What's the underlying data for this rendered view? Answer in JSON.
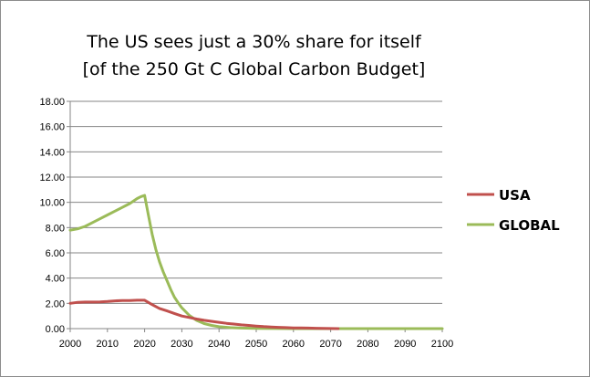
{
  "chart_data": {
    "type": "line",
    "title": [
      "The US sees just a 30% share for itself",
      "[of the 250 Gt C Global Carbon Budget]"
    ],
    "xlabel": "",
    "ylabel": "",
    "xlim": [
      2000,
      2100
    ],
    "ylim": [
      0,
      18
    ],
    "x_ticks": [
      "2000",
      "2010",
      "2020",
      "2030",
      "2040",
      "2050",
      "2060",
      "2070",
      "2080",
      "2090",
      "2100"
    ],
    "y_ticks": [
      "0.00",
      "2.00",
      "4.00",
      "6.00",
      "8.00",
      "10.00",
      "12.00",
      "14.00",
      "16.00",
      "18.00"
    ],
    "grid": "horizontal",
    "legend_position": "right",
    "series": [
      {
        "name": "USA",
        "color": "#c0504d",
        "x": [
          2000,
          2002,
          2004,
          2006,
          2008,
          2010,
          2012,
          2014,
          2016,
          2018,
          2020,
          2022,
          2024,
          2026,
          2028,
          2030,
          2032,
          2034,
          2036,
          2038,
          2040,
          2042,
          2044,
          2046,
          2048,
          2050,
          2052,
          2054,
          2056,
          2058,
          2060,
          2062,
          2064,
          2066,
          2068,
          2070,
          2072
        ],
        "values": [
          2.0,
          2.08,
          2.1,
          2.1,
          2.12,
          2.15,
          2.2,
          2.22,
          2.22,
          2.25,
          2.25,
          1.9,
          1.6,
          1.4,
          1.2,
          1.0,
          0.88,
          0.76,
          0.66,
          0.58,
          0.5,
          0.42,
          0.36,
          0.3,
          0.25,
          0.2,
          0.16,
          0.13,
          0.1,
          0.08,
          0.06,
          0.05,
          0.04,
          0.03,
          0.02,
          0.01,
          0.0
        ]
      },
      {
        "name": "GLOBAL",
        "color": "#9bbb59",
        "x": [
          2000,
          2002,
          2004,
          2006,
          2008,
          2010,
          2012,
          2014,
          2016,
          2018,
          2019,
          2020,
          2021,
          2022,
          2023,
          2024,
          2025,
          2026,
          2027,
          2028,
          2029,
          2030,
          2032,
          2034,
          2036,
          2038,
          2040,
          2043,
          2046,
          2050,
          2055,
          2060,
          2070,
          2080,
          2090,
          2100
        ],
        "values": [
          7.8,
          7.9,
          8.1,
          8.4,
          8.7,
          9.0,
          9.3,
          9.6,
          9.9,
          10.3,
          10.45,
          10.55,
          9.0,
          7.5,
          6.3,
          5.3,
          4.5,
          3.8,
          3.1,
          2.5,
          2.05,
          1.65,
          1.05,
          0.65,
          0.4,
          0.25,
          0.15,
          0.08,
          0.04,
          0.02,
          0.01,
          0.0,
          0.0,
          0.0,
          0.0,
          0.0
        ]
      }
    ]
  }
}
